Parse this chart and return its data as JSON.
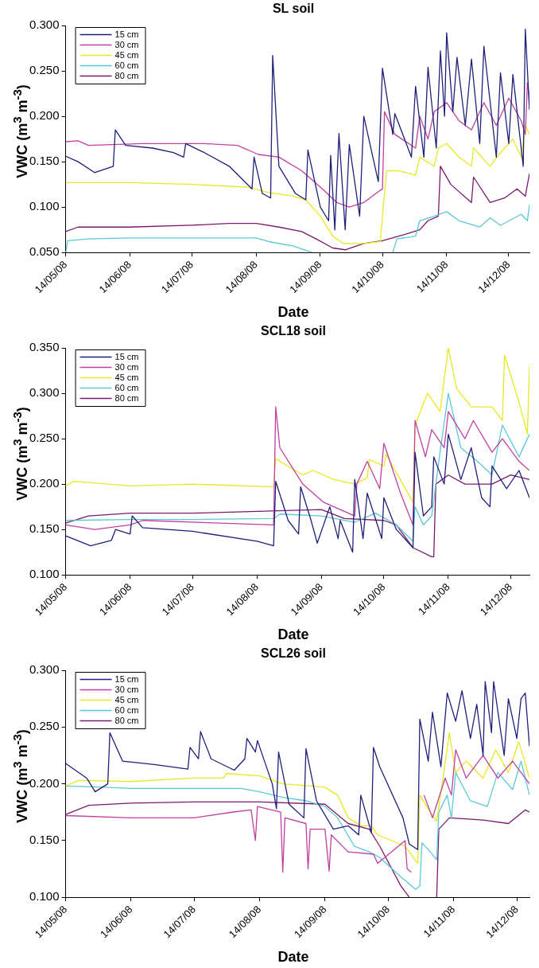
{
  "chart_data": [
    {
      "type": "line",
      "title": "SL soil",
      "xlabel": "Date",
      "ylabel": "VWC (m$^{3}$ m$^{-3}$)",
      "legend": "top left",
      "xlim": [
        "2008-05-14",
        "2008-12-24"
      ],
      "xticks": [
        {
          "value": "2008-05-14",
          "label": "14/05/08"
        },
        {
          "value": "2008-06-14",
          "label": "14/06/08"
        },
        {
          "value": "2008-07-14",
          "label": "14/07/08"
        },
        {
          "value": "2008-08-14",
          "label": "14/08/08"
        },
        {
          "value": "2008-09-14",
          "label": "14/09/08"
        },
        {
          "value": "2008-10-14",
          "label": "14/10/08"
        },
        {
          "value": "2008-11-14",
          "label": "14/11/08"
        },
        {
          "value": "2008-12-14",
          "label": "14/12/08"
        }
      ],
      "ylim": [
        0.05,
        0.3
      ],
      "yticks": [
        {
          "value": 0.05,
          "label": "0.050"
        },
        {
          "value": 0.1,
          "label": "0.100"
        },
        {
          "value": 0.15,
          "label": "0.150"
        },
        {
          "value": 0.2,
          "label": "0.200"
        },
        {
          "value": 0.25,
          "label": "0.250"
        },
        {
          "value": 0.3,
          "label": "0.300"
        }
      ],
      "series": [
        {
          "name": "15 cm",
          "color": "#1f1f7a",
          "x": [
            "2008-05-14",
            "2008-05-20",
            "2008-05-28",
            "2008-06-06",
            "2008-06-07",
            "2008-06-12",
            "2008-06-25",
            "2008-07-05",
            "2008-07-10",
            "2008-07-11",
            "2008-07-20",
            "2008-08-01",
            "2008-08-12",
            "2008-08-13",
            "2008-08-17",
            "2008-08-21",
            "2008-08-22",
            "2008-08-25",
            "2008-09-02",
            "2008-09-07",
            "2008-09-08",
            "2008-09-14",
            "2008-09-18",
            "2008-09-19",
            "2008-09-21",
            "2008-09-23",
            "2008-09-26",
            "2008-09-28",
            "2008-10-03",
            "2008-10-05",
            "2008-10-12",
            "2008-10-14",
            "2008-10-19",
            "2008-10-20",
            "2008-10-28",
            "2008-10-30",
            "2008-11-03",
            "2008-11-05",
            "2008-11-09",
            "2008-11-11",
            "2008-11-13",
            "2008-11-14",
            "2008-11-17",
            "2008-11-19",
            "2008-11-23",
            "2008-11-26",
            "2008-11-30",
            "2008-12-02",
            "2008-12-08",
            "2008-12-10",
            "2008-12-14",
            "2008-12-16",
            "2008-12-21",
            "2008-12-22",
            "2008-12-24"
          ],
          "values": [
            0.156,
            0.15,
            0.138,
            0.145,
            0.185,
            0.168,
            0.165,
            0.16,
            0.155,
            0.17,
            0.16,
            0.145,
            0.12,
            0.155,
            0.115,
            0.11,
            0.267,
            0.145,
            0.115,
            0.108,
            0.163,
            0.1,
            0.085,
            0.157,
            0.075,
            0.181,
            0.075,
            0.169,
            0.09,
            0.2,
            0.128,
            0.253,
            0.18,
            0.203,
            0.155,
            0.233,
            0.155,
            0.254,
            0.165,
            0.272,
            0.2,
            0.292,
            0.205,
            0.265,
            0.19,
            0.263,
            0.17,
            0.277,
            0.155,
            0.248,
            0.17,
            0.246,
            0.145,
            0.296,
            0.207
          ]
        },
        {
          "name": "30 cm",
          "color": "#c040a0",
          "x": [
            "2008-05-14",
            "2008-05-20",
            "2008-05-25",
            "2008-06-20",
            "2008-07-20",
            "2008-08-05",
            "2008-08-15",
            "2008-08-25",
            "2008-09-05",
            "2008-09-15",
            "2008-09-22",
            "2008-09-28",
            "2008-10-05",
            "2008-10-12",
            "2008-10-14",
            "2008-10-15",
            "2008-10-20",
            "2008-10-30",
            "2008-11-01",
            "2008-11-05",
            "2008-11-08",
            "2008-11-14",
            "2008-11-20",
            "2008-11-26",
            "2008-12-02",
            "2008-12-08",
            "2008-12-14",
            "2008-12-20",
            "2008-12-22",
            "2008-12-23",
            "2008-12-24"
          ],
          "values": [
            0.172,
            0.173,
            0.168,
            0.17,
            0.17,
            0.168,
            0.158,
            0.155,
            0.14,
            0.12,
            0.105,
            0.1,
            0.105,
            0.117,
            0.12,
            0.205,
            0.18,
            0.165,
            0.2,
            0.175,
            0.205,
            0.215,
            0.195,
            0.185,
            0.215,
            0.19,
            0.22,
            0.195,
            0.18,
            0.237,
            0.22
          ]
        },
        {
          "name": "45 cm",
          "color": "#e8e820",
          "x": [
            "2008-05-14",
            "2008-06-14",
            "2008-07-14",
            "2008-08-10",
            "2008-08-20",
            "2008-09-01",
            "2008-09-07",
            "2008-09-14",
            "2008-09-20",
            "2008-09-25",
            "2008-10-05",
            "2008-10-13",
            "2008-10-14",
            "2008-10-16",
            "2008-10-22",
            "2008-10-30",
            "2008-11-01",
            "2008-11-08",
            "2008-11-10",
            "2008-11-14",
            "2008-11-20",
            "2008-11-26",
            "2008-11-27",
            "2008-12-05",
            "2008-12-10",
            "2008-12-16",
            "2008-12-20",
            "2008-12-22",
            "2008-12-24"
          ],
          "values": [
            0.127,
            0.127,
            0.125,
            0.122,
            0.116,
            0.112,
            0.108,
            0.09,
            0.068,
            0.06,
            0.06,
            0.062,
            0.09,
            0.14,
            0.14,
            0.135,
            0.155,
            0.145,
            0.165,
            0.17,
            0.155,
            0.145,
            0.165,
            0.145,
            0.16,
            0.175,
            0.155,
            0.19,
            0.18
          ]
        },
        {
          "name": "60 cm",
          "color": "#5bc8d8",
          "x": [
            "2008-05-14",
            "2008-05-15",
            "2008-05-25",
            "2008-06-14",
            "2008-07-14",
            "2008-08-14",
            "2008-08-20",
            "2008-09-01",
            "2008-09-10",
            "2008-09-30",
            "2008-10-19",
            "2008-10-21",
            "2008-10-30",
            "2008-11-01",
            "2008-11-08",
            "2008-11-14",
            "2008-11-20",
            "2008-11-30",
            "2008-12-05",
            "2008-12-10",
            "2008-12-20",
            "2008-12-23",
            "2008-12-24"
          ],
          "values": [
            0.05,
            0.063,
            0.065,
            0.066,
            0.066,
            0.066,
            0.062,
            0.057,
            0.05,
            null,
            0.05,
            0.065,
            0.068,
            0.085,
            0.09,
            0.095,
            0.085,
            0.078,
            0.088,
            0.08,
            0.092,
            0.085,
            0.103
          ]
        },
        {
          "name": "80 cm",
          "color": "#7a1a6e",
          "x": [
            "2008-05-14",
            "2008-05-20",
            "2008-06-14",
            "2008-07-14",
            "2008-08-01",
            "2008-08-14",
            "2008-08-25",
            "2008-09-05",
            "2008-09-12",
            "2008-09-20",
            "2008-09-26",
            "2008-10-05",
            "2008-10-14",
            "2008-10-25",
            "2008-11-01",
            "2008-11-05",
            "2008-11-10",
            "2008-11-11",
            "2008-11-16",
            "2008-11-26",
            "2008-11-27",
            "2008-12-05",
            "2008-12-12",
            "2008-12-18",
            "2008-12-22",
            "2008-12-24"
          ],
          "values": [
            0.073,
            0.078,
            0.078,
            0.08,
            0.082,
            0.082,
            0.078,
            0.073,
            0.065,
            0.055,
            0.053,
            0.06,
            0.063,
            0.07,
            0.075,
            0.085,
            0.09,
            0.145,
            0.125,
            0.105,
            0.133,
            0.105,
            0.11,
            0.12,
            0.112,
            0.137
          ]
        }
      ]
    },
    {
      "type": "line",
      "title": "SCL18 soil",
      "xlabel": "Date",
      "ylabel": "VWC (m$^{3}$ m$^{-3}$)",
      "legend": "top left",
      "xlim": [
        "2008-05-14",
        "2008-12-23"
      ],
      "xticks": [
        {
          "value": "2008-05-14",
          "label": "14/05/08"
        },
        {
          "value": "2008-06-14",
          "label": "14/06/08"
        },
        {
          "value": "2008-07-14",
          "label": "14/07/08"
        },
        {
          "value": "2008-08-14",
          "label": "14/08/08"
        },
        {
          "value": "2008-09-14",
          "label": "14/09/08"
        },
        {
          "value": "2008-10-14",
          "label": "14/10/08"
        },
        {
          "value": "2008-11-14",
          "label": "14/11/08"
        },
        {
          "value": "2008-12-14",
          "label": "14/12/08"
        }
      ],
      "ylim": [
        0.1,
        0.35
      ],
      "yticks": [
        {
          "value": 0.1,
          "label": "0.100"
        },
        {
          "value": 0.15,
          "label": "0.150"
        },
        {
          "value": 0.2,
          "label": "0.200"
        },
        {
          "value": 0.25,
          "label": "0.250"
        },
        {
          "value": 0.3,
          "label": "0.300"
        },
        {
          "value": 0.35,
          "label": "0.350"
        }
      ],
      "series": [
        {
          "name": "15 cm",
          "color": "#1f1f7a",
          "x": [
            "2008-05-14",
            "2008-05-26",
            "2008-06-05",
            "2008-06-07",
            "2008-06-14",
            "2008-06-15",
            "2008-06-20",
            "2008-07-14",
            "2008-08-14",
            "2008-08-22",
            "2008-08-23",
            "2008-08-29",
            "2008-09-03",
            "2008-09-04",
            "2008-09-09",
            "2008-09-12",
            "2008-09-18",
            "2008-09-22",
            "2008-09-23",
            "2008-09-29",
            "2008-09-30",
            "2008-10-04",
            "2008-10-06",
            "2008-10-13",
            "2008-10-14",
            "2008-10-20",
            "2008-10-28",
            "2008-10-29",
            "2008-11-02",
            "2008-11-06",
            "2008-11-07",
            "2008-11-12",
            "2008-11-14",
            "2008-11-20",
            "2008-11-25",
            "2008-11-30",
            "2008-12-04",
            "2008-12-05",
            "2008-12-12",
            "2008-12-18",
            "2008-12-23"
          ],
          "values": [
            0.143,
            0.132,
            0.138,
            0.15,
            0.145,
            0.165,
            0.152,
            0.148,
            0.137,
            0.132,
            0.203,
            0.16,
            0.145,
            0.197,
            0.16,
            0.135,
            0.175,
            0.14,
            0.16,
            0.125,
            0.205,
            0.14,
            0.19,
            0.14,
            0.185,
            0.15,
            0.13,
            0.235,
            0.165,
            0.175,
            0.23,
            0.2,
            0.255,
            0.205,
            0.24,
            0.185,
            0.175,
            0.22,
            0.195,
            0.215,
            0.185
          ]
        },
        {
          "name": "30 cm",
          "color": "#c040a0",
          "x": [
            "2008-05-14",
            "2008-05-28",
            "2008-06-14",
            "2008-06-20",
            "2008-08-22",
            "2008-08-23",
            "2008-08-25",
            "2008-09-05",
            "2008-09-15",
            "2008-09-30",
            "2008-10-01",
            "2008-10-06",
            "2008-10-12",
            "2008-10-14",
            "2008-10-22",
            "2008-10-28",
            "2008-10-29",
            "2008-11-03",
            "2008-11-06",
            "2008-11-12",
            "2008-11-14",
            "2008-11-22",
            "2008-11-26",
            "2008-12-05",
            "2008-12-10",
            "2008-12-18",
            "2008-12-23"
          ],
          "values": [
            0.155,
            0.15,
            0.155,
            0.16,
            0.155,
            0.285,
            0.24,
            0.2,
            0.18,
            0.165,
            0.2,
            0.225,
            0.195,
            0.245,
            0.19,
            0.155,
            0.27,
            0.23,
            0.26,
            0.24,
            0.28,
            0.25,
            0.27,
            0.235,
            0.25,
            0.225,
            0.215
          ]
        },
        {
          "name": "45 cm",
          "color": "#e8e820",
          "x": [
            "2008-05-14",
            "2008-05-18",
            "2008-06-14",
            "2008-07-14",
            "2008-08-22",
            "2008-08-23",
            "2008-09-05",
            "2008-09-10",
            "2008-09-20",
            "2008-09-30",
            "2008-10-06",
            "2008-10-07",
            "2008-10-14",
            "2008-10-15",
            "2008-10-28",
            "2008-10-29",
            "2008-11-04",
            "2008-11-10",
            "2008-11-14",
            "2008-11-18",
            "2008-11-25",
            "2008-12-05",
            "2008-12-10",
            "2008-12-11",
            "2008-12-18",
            "2008-12-22",
            "2008-12-23"
          ],
          "values": [
            0.198,
            0.203,
            0.198,
            0.2,
            0.197,
            0.228,
            0.21,
            0.215,
            0.205,
            0.2,
            0.207,
            0.227,
            0.22,
            0.233,
            0.18,
            0.265,
            0.3,
            0.28,
            0.35,
            0.305,
            0.285,
            0.285,
            0.27,
            0.342,
            0.29,
            0.255,
            0.33
          ]
        },
        {
          "name": "60 cm",
          "color": "#5bc8d8",
          "x": [
            "2008-05-14",
            "2008-06-14",
            "2008-07-14",
            "2008-08-22",
            "2008-08-25",
            "2008-09-14",
            "2008-09-30",
            "2008-10-10",
            "2008-10-20",
            "2008-10-28",
            "2008-10-29",
            "2008-11-02",
            "2008-11-06",
            "2008-11-10",
            "2008-11-14",
            "2008-11-20",
            "2008-11-28",
            "2008-12-05",
            "2008-12-10",
            "2008-12-18",
            "2008-12-23"
          ],
          "values": [
            0.16,
            0.161,
            0.161,
            0.162,
            0.167,
            0.165,
            0.158,
            0.168,
            0.155,
            0.137,
            0.175,
            0.155,
            0.165,
            0.235,
            0.3,
            0.24,
            0.225,
            0.21,
            0.265,
            0.23,
            0.255
          ]
        },
        {
          "name": "80 cm",
          "color": "#7a1a6e",
          "x": [
            "2008-05-14",
            "2008-05-25",
            "2008-06-14",
            "2008-07-14",
            "2008-08-14",
            "2008-09-14",
            "2008-09-25",
            "2008-10-14",
            "2008-10-20",
            "2008-10-28",
            "2008-11-06",
            "2008-11-07",
            "2008-11-08",
            "2008-11-14",
            "2008-11-22",
            "2008-12-05",
            "2008-12-14",
            "2008-12-23"
          ],
          "values": [
            0.157,
            0.165,
            0.168,
            0.168,
            0.17,
            0.172,
            0.162,
            0.16,
            0.155,
            0.13,
            0.12,
            0.12,
            0.2,
            0.21,
            0.2,
            0.2,
            0.21,
            0.205
          ]
        }
      ]
    },
    {
      "type": "line",
      "title": "SCL26 soil",
      "xlabel": "Date",
      "ylabel": "VWC (m$^{3}$ m$^{-3}$)",
      "legend": "top left",
      "xlim": [
        "2008-05-14",
        "2008-12-20"
      ],
      "xticks": [
        {
          "value": "2008-05-14",
          "label": "14/05/08"
        },
        {
          "value": "2008-06-14",
          "label": "14/06/08"
        },
        {
          "value": "2008-07-14",
          "label": "14/07/08"
        },
        {
          "value": "2008-08-14",
          "label": "14/08/08"
        },
        {
          "value": "2008-09-14",
          "label": "14/09/08"
        },
        {
          "value": "2008-10-14",
          "label": "14/10/08"
        },
        {
          "value": "2008-11-14",
          "label": "14/11/08"
        },
        {
          "value": "2008-12-14",
          "label": "14/12/08"
        }
      ],
      "ylim": [
        0.1,
        0.3
      ],
      "yticks": [
        {
          "value": 0.1,
          "label": "0.100"
        },
        {
          "value": 0.15,
          "label": "0.150"
        },
        {
          "value": 0.2,
          "label": "0.200"
        },
        {
          "value": 0.25,
          "label": "0.250"
        },
        {
          "value": 0.3,
          "label": "0.300"
        }
      ],
      "series": [
        {
          "name": "15 cm",
          "color": "#1f1f7a",
          "x": [
            "2008-05-14",
            "2008-05-24",
            "2008-05-28",
            "2008-06-03",
            "2008-06-04",
            "2008-06-10",
            "2008-06-25",
            "2008-07-11",
            "2008-07-12",
            "2008-07-16",
            "2008-07-17",
            "2008-07-22",
            "2008-08-02",
            "2008-08-07",
            "2008-08-08",
            "2008-08-12",
            "2008-08-13",
            "2008-08-20",
            "2008-08-22",
            "2008-08-23",
            "2008-08-28",
            "2008-09-04",
            "2008-09-05",
            "2008-09-10",
            "2008-09-18",
            "2008-09-25",
            "2008-09-30",
            "2008-10-01",
            "2008-10-06",
            "2008-10-07",
            "2008-10-10",
            "2008-10-21",
            "2008-10-24",
            "2008-10-28",
            "2008-10-29",
            "2008-11-02",
            "2008-11-04",
            "2008-11-08",
            "2008-11-11",
            "2008-11-15",
            "2008-11-18",
            "2008-11-22",
            "2008-11-25",
            "2008-11-28",
            "2008-11-29",
            "2008-12-02",
            "2008-12-03",
            "2008-12-08",
            "2008-12-10",
            "2008-12-14",
            "2008-12-16",
            "2008-12-18",
            "2008-12-20"
          ],
          "values": [
            0.218,
            0.205,
            0.193,
            0.2,
            0.245,
            0.22,
            0.217,
            0.213,
            0.232,
            0.222,
            0.246,
            0.222,
            0.212,
            0.222,
            0.24,
            0.228,
            0.238,
            0.2,
            0.178,
            0.228,
            0.182,
            0.17,
            0.231,
            0.185,
            0.16,
            0.163,
            0.155,
            0.19,
            0.157,
            0.232,
            0.215,
            0.17,
            0.147,
            0.142,
            0.257,
            0.22,
            0.263,
            0.215,
            0.28,
            0.255,
            0.282,
            0.24,
            0.27,
            0.225,
            0.29,
            0.245,
            0.29,
            0.225,
            0.275,
            0.24,
            0.275,
            0.28,
            0.233
          ]
        },
        {
          "name": "30 cm",
          "color": "#c040a0",
          "x": [
            "2008-05-14",
            "2008-06-14",
            "2008-07-14",
            "2008-08-01",
            "2008-08-10",
            "2008-08-12",
            "2008-08-13",
            "2008-08-24",
            "2008-08-25",
            "2008-08-26",
            "2008-09-05",
            "2008-09-06",
            "2008-09-07",
            "2008-09-14",
            "2008-09-16",
            "2008-09-17",
            "2008-09-25",
            "2008-10-07",
            "2008-10-09",
            "2008-10-22",
            "2008-10-23",
            "2008-10-25",
            "2008-10-28",
            "2008-10-31",
            "2008-11-04",
            "2008-11-10",
            "2008-11-13",
            "2008-11-15",
            "2008-11-20",
            "2008-11-28",
            "2008-12-05",
            "2008-12-12",
            "2008-12-20"
          ],
          "values": [
            0.172,
            0.17,
            0.17,
            0.175,
            0.177,
            0.15,
            0.18,
            0.175,
            0.122,
            0.17,
            0.165,
            0.125,
            0.16,
            0.16,
            0.123,
            0.155,
            0.14,
            0.138,
            0.13,
            0.15,
            0.125,
            0.122,
            null,
            0.19,
            0.17,
            0.205,
            0.19,
            0.23,
            0.205,
            0.225,
            0.205,
            0.22,
            0.2
          ]
        },
        {
          "name": "45 cm",
          "color": "#e8e820",
          "x": [
            "2008-05-14",
            "2008-05-20",
            "2008-06-14",
            "2008-07-14",
            "2008-07-28",
            "2008-07-29",
            "2008-08-14",
            "2008-08-25",
            "2008-09-14",
            "2008-09-20",
            "2008-09-25",
            "2008-10-01",
            "2008-10-06",
            "2008-10-09",
            "2008-10-22",
            "2008-10-28",
            "2008-10-29",
            "2008-11-03",
            "2008-11-06",
            "2008-11-09",
            "2008-11-12",
            "2008-11-15",
            "2008-11-20",
            "2008-11-28",
            "2008-12-04",
            "2008-12-10",
            "2008-12-15",
            "2008-12-20"
          ],
          "values": [
            0.198,
            0.203,
            0.202,
            0.205,
            0.205,
            0.209,
            0.207,
            0.2,
            0.197,
            0.19,
            0.17,
            0.163,
            0.163,
            0.155,
            0.145,
            0.13,
            0.19,
            0.175,
            0.167,
            0.205,
            0.245,
            0.21,
            0.22,
            0.205,
            0.23,
            0.21,
            0.237,
            0.205
          ]
        },
        {
          "name": "60 cm",
          "color": "#5bc8d8",
          "x": [
            "2008-05-14",
            "2008-06-01",
            "2008-06-14",
            "2008-07-14",
            "2008-08-05",
            "2008-08-14",
            "2008-08-25",
            "2008-09-05",
            "2008-09-14",
            "2008-09-20",
            "2008-09-28",
            "2008-10-05",
            "2008-10-10",
            "2008-10-20",
            "2008-10-27",
            "2008-10-29",
            "2008-10-30",
            "2008-11-03",
            "2008-11-06",
            "2008-11-07",
            "2008-11-11",
            "2008-11-13",
            "2008-11-15",
            "2008-11-22",
            "2008-11-30",
            "2008-12-05",
            "2008-12-12",
            "2008-12-16",
            "2008-12-20"
          ],
          "values": [
            0.198,
            0.197,
            0.196,
            0.196,
            0.196,
            0.193,
            0.188,
            0.185,
            0.18,
            0.17,
            0.145,
            0.14,
            0.135,
            0.118,
            0.107,
            0.11,
            0.148,
            0.14,
            0.133,
            0.175,
            0.19,
            0.17,
            0.21,
            0.185,
            0.18,
            0.21,
            0.195,
            0.22,
            0.19
          ]
        },
        {
          "name": "80 cm",
          "color": "#7a1a6e",
          "x": [
            "2008-05-14",
            "2008-05-25",
            "2008-06-14",
            "2008-07-14",
            "2008-08-14",
            "2008-09-14",
            "2008-09-25",
            "2008-10-05",
            "2008-10-10",
            "2008-10-20",
            "2008-10-24",
            "2008-10-30",
            "2008-11-06",
            "2008-11-07",
            "2008-11-12",
            "2008-11-28",
            "2008-12-10",
            "2008-12-18",
            "2008-12-20"
          ],
          "values": [
            0.173,
            0.181,
            0.183,
            0.184,
            0.184,
            0.182,
            0.165,
            0.16,
            0.145,
            0.11,
            0.1,
            null,
            0.1,
            0.16,
            0.17,
            0.168,
            0.165,
            0.177,
            0.175
          ]
        }
      ]
    }
  ]
}
